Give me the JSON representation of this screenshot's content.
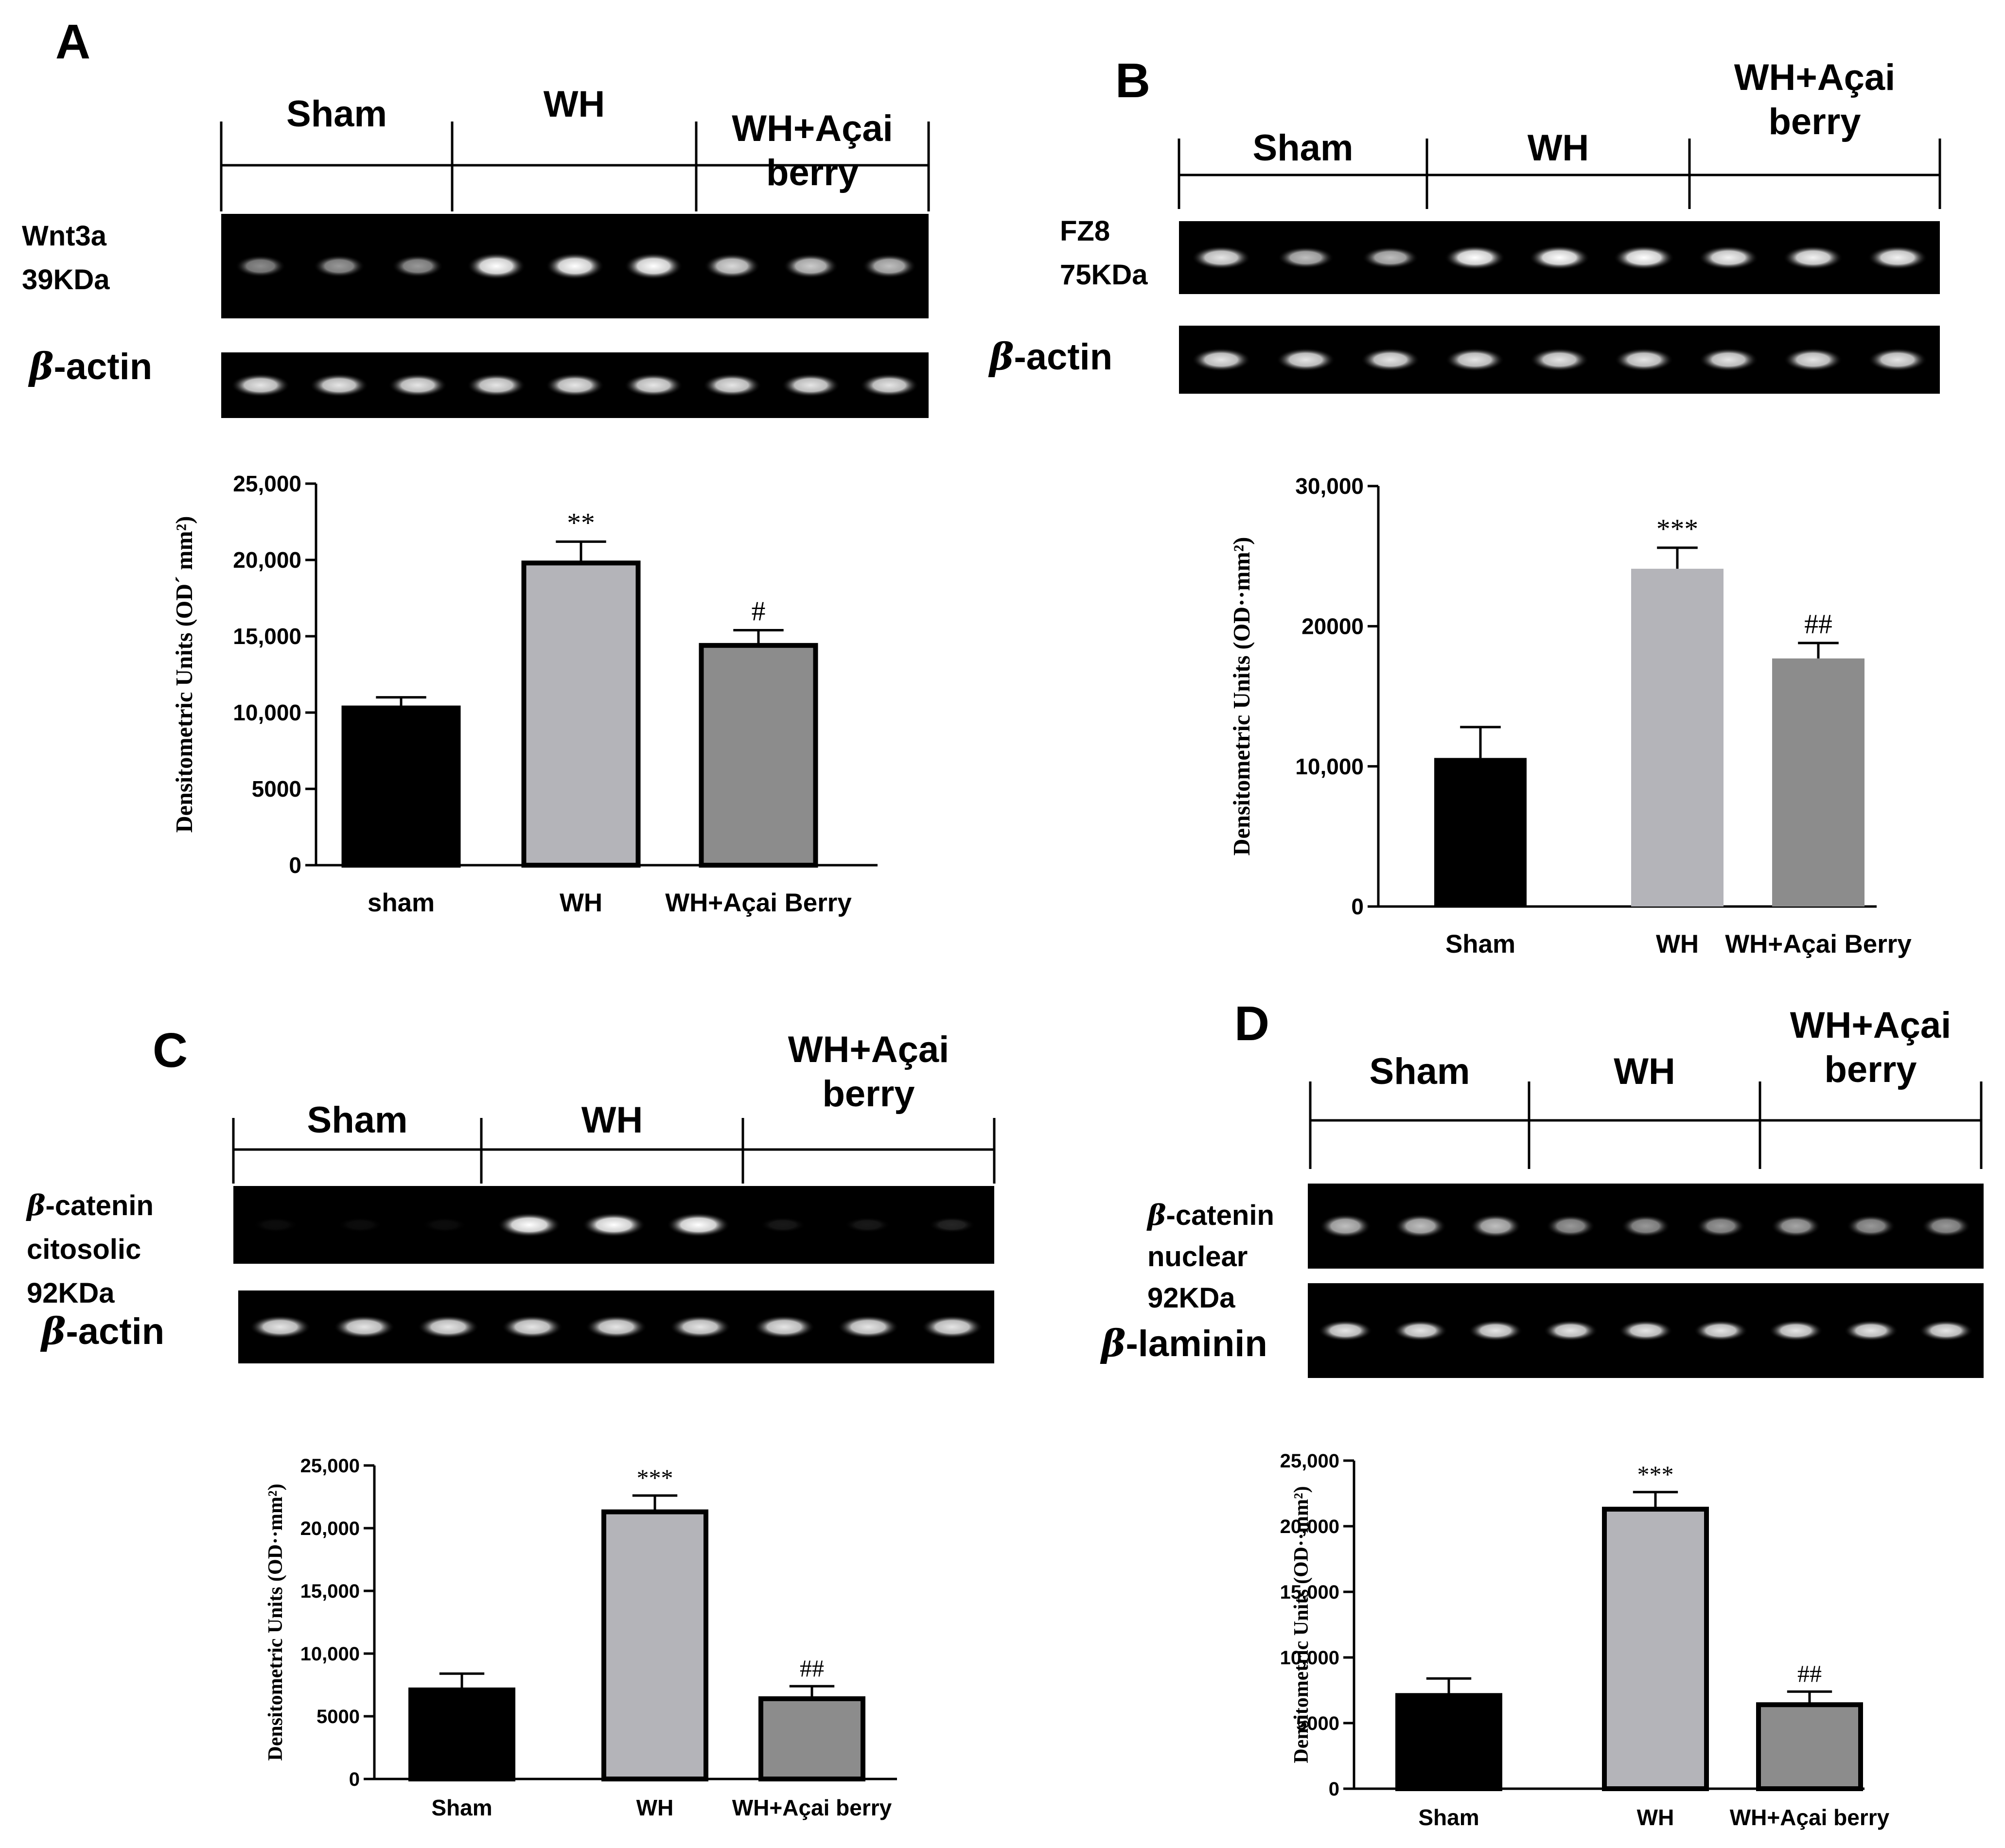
{
  "panels": [
    {
      "id": "A",
      "letter": "A",
      "header_groups": [
        "Sham",
        "WH",
        "WH+Açai\nberry"
      ],
      "blots": [
        {
          "label_lines": [
            "Wnt3a",
            "39KDa"
          ],
          "italic_first": false
        },
        {
          "label_lines": [
            "β-actin"
          ],
          "italic_first": true
        }
      ]
    },
    {
      "id": "B",
      "letter": "B",
      "header_groups": [
        "Sham",
        "WH",
        "WH+Açai\nberry"
      ],
      "blots": [
        {
          "label_lines": [
            "FZ8",
            "75KDa"
          ],
          "italic_first": false
        },
        {
          "label_lines": [
            "β-actin"
          ],
          "italic_first": true
        }
      ]
    },
    {
      "id": "C",
      "letter": "C",
      "header_groups": [
        "Sham",
        "WH",
        "WH+Açai\nberry"
      ],
      "blots": [
        {
          "label_lines": [
            "β-catenin",
            "citosolic",
            "92KDa"
          ],
          "italic_first": true
        },
        {
          "label_lines": [
            "β-actin"
          ],
          "italic_first": true
        }
      ]
    },
    {
      "id": "D",
      "letter": "D",
      "header_groups": [
        "Sham",
        "WH",
        "WH+Açai\nberry"
      ],
      "blots": [
        {
          "label_lines": [
            "β-catenin",
            "nuclear",
            "92KDa"
          ],
          "italic_first": true
        },
        {
          "label_lines": [
            "β-laminin"
          ],
          "italic_first": true
        }
      ]
    }
  ],
  "chart_data": [
    {
      "panel": "A",
      "type": "bar",
      "categories": [
        "sham",
        "WH",
        "WH+Açai Berry"
      ],
      "values": [
        10300,
        19800,
        14400
      ],
      "errors": [
        700,
        1400,
        1000
      ],
      "significance": [
        "",
        "**",
        "#"
      ],
      "ylabel": "Densitometric Units (OD´ mm²)",
      "ylim": [
        0,
        25000
      ],
      "yticks": [
        "0",
        "5000",
        "10,000",
        "15,000",
        "20,000",
        "25,000"
      ],
      "colors": [
        "#000000",
        "#b4b4b9",
        "#8c8c8c"
      ],
      "bar_outline": true
    },
    {
      "panel": "B",
      "type": "bar",
      "categories": [
        "Sham",
        "WH",
        "WH+Açai Berry"
      ],
      "values": [
        10600,
        24100,
        17700
      ],
      "errors": [
        2200,
        1500,
        1100
      ],
      "significance": [
        "",
        "***",
        "##"
      ],
      "ylabel": "Densitometric Units (OD··mm²)",
      "ylim": [
        0,
        30000
      ],
      "yticks": [
        "0",
        "10,000",
        "20000",
        "30,000"
      ],
      "colors": [
        "#000000",
        "#b4b4b9",
        "#8c8c8c"
      ],
      "bar_outline": false
    },
    {
      "panel": "C",
      "type": "bar",
      "categories": [
        "Sham",
        "WH",
        "WH+Açai berry"
      ],
      "values": [
        7100,
        21300,
        6400
      ],
      "errors": [
        1300,
        1300,
        1000
      ],
      "significance": [
        "",
        "***",
        "##"
      ],
      "ylabel": "Densitometric Units (OD··mm²)",
      "ylim": [
        0,
        25000
      ],
      "yticks": [
        "0",
        "5000",
        "10,000",
        "15,000",
        "20,000",
        "25,000"
      ],
      "colors": [
        "#000000",
        "#b4b4b9",
        "#8c8c8c"
      ],
      "bar_outline": true
    },
    {
      "panel": "D",
      "type": "bar",
      "categories": [
        "Sham",
        "WH",
        "WH+Açai berry"
      ],
      "values": [
        7100,
        21300,
        6400
      ],
      "errors": [
        1300,
        1300,
        1000
      ],
      "significance": [
        "",
        "***",
        "##"
      ],
      "ylabel": "Densitometric Units (OD··mm²)",
      "ylim": [
        0,
        25000
      ],
      "yticks": [
        "0",
        "5000",
        "10,000",
        "15,000",
        "20,000",
        "25,000"
      ],
      "colors": [
        "#000000",
        "#b4b4b9",
        "#8c8c8c"
      ],
      "bar_outline": true
    }
  ]
}
